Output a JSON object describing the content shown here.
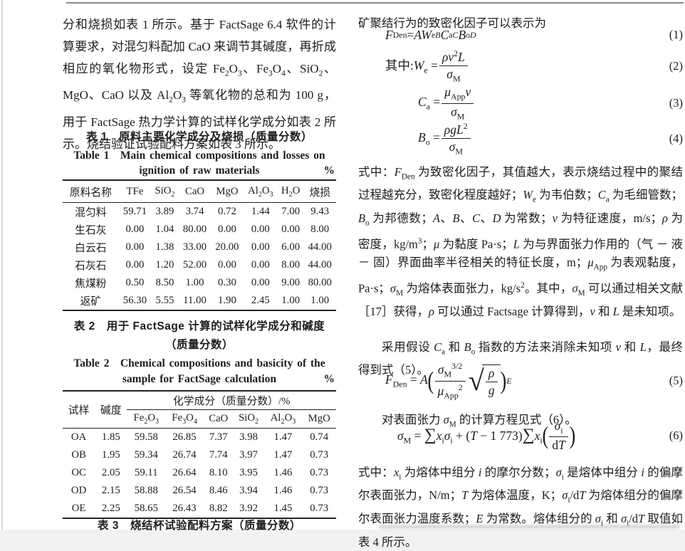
{
  "left": {
    "intro": "分和烧损如表 1 所示。基于 FactSage 6.4 软件的计算要求，对混匀料配加 CaO 来调节其碱度，再折成相应的氧化物形式，设定 Fe<sub>2</sub>O<sub>3</sub>、Fe<sub>3</sub>O<sub>4</sub>、SiO<sub>2</sub>、MgO、CaO 以及 Al<sub>2</sub>O<sub>3</sub> 等氧化物的总和为 100 g，用于 FactSage 热力学计算的试样化学成分如表 2 所示。烧结验证试验配料方案如表 3 所示。",
    "table1": {
      "caption_zh": "表 1　原料主要化学成分及烧损（质量分数）",
      "caption_en_line1": "Table 1　Main chemical compositions and losses on",
      "caption_en_line2": "ignition of raw materials",
      "unit": "%",
      "headers": [
        "原料名称",
        "TFe",
        "SiO<sub>2</sub>",
        "CaO",
        "MgO",
        "Al<sub>2</sub>O<sub>3</sub>",
        "H<sub>2</sub>O",
        "烧损"
      ],
      "rows": [
        [
          "混匀料",
          "59.71",
          "3.89",
          "3.74",
          "0.72",
          "1.44",
          "7.00",
          "9.43"
        ],
        [
          "生石灰",
          "0.00",
          "1.04",
          "80.00",
          "0.00",
          "0.00",
          "0.00",
          "8.00"
        ],
        [
          "白云石",
          "0.00",
          "1.38",
          "33.00",
          "20.00",
          "0.00",
          "6.00",
          "44.00"
        ],
        [
          "石灰石",
          "0.00",
          "1.20",
          "52.00",
          "0.00",
          "0.00",
          "8.00",
          "44.00"
        ],
        [
          "焦煤粉",
          "0.50",
          "8.50",
          "1.00",
          "0.30",
          "0.00",
          "9.00",
          "80.00"
        ],
        [
          "返矿",
          "56.30",
          "5.55",
          "11.00",
          "1.90",
          "2.45",
          "1.00",
          "1.00"
        ]
      ]
    },
    "table2": {
      "caption_zh_line1": "表 2　用于 FactSage 计算的试样化学成分和碱度",
      "caption_zh_line2": "（质量分数）",
      "caption_en_line1": "Table 2　Chemical compositions and basicity of the",
      "caption_en_line2": "sample for FactSage calculation",
      "unit": "%",
      "header_sample": "试样",
      "header_basicity": "碱度",
      "header_group": "化学成分（质量分数）/%",
      "subheaders": [
        "Fe<sub>2</sub>O<sub>3</sub>",
        "Fe<sub>3</sub>O<sub>4</sub>",
        "CaO",
        "SiO<sub>2</sub>",
        "Al<sub>2</sub>O<sub>3</sub>",
        "MgO"
      ],
      "rows": [
        [
          "OA",
          "1.85",
          "59.58",
          "26.85",
          "7.37",
          "3.98",
          "1.47",
          "0.74"
        ],
        [
          "OB",
          "1.95",
          "59.34",
          "26.74",
          "7.74",
          "3.97",
          "1.47",
          "0.73"
        ],
        [
          "OC",
          "2.05",
          "59.11",
          "26.64",
          "8.10",
          "3.95",
          "1.46",
          "0.73"
        ],
        [
          "OD",
          "2.15",
          "58.88",
          "26.54",
          "8.46",
          "3.94",
          "1.46",
          "0.73"
        ],
        [
          "OE",
          "2.25",
          "58.65",
          "26.43",
          "8.82",
          "3.92",
          "1.45",
          "0.73"
        ]
      ]
    },
    "table3_caption": "表 3　烧结杯试验配料方案（质量分数）"
  },
  "right": {
    "lead": "矿聚结行为的致密化因子可以表示为",
    "eq1": {
      "body": "<i>F</i><sub>Den</sub> = <i>AW</i><sub>e</sub><sup><i>B</i></sup><i>C</i><sub>a</sub><sup><i>C</i></sup><i>B</i><sub>o</sub><sup><i>D</i></sup>",
      "no": "(1)"
    },
    "eq2": {
      "prefix": "其中:<i>W</i><sub>e</sub> = ",
      "num": "<i>ρv</i><sup>2</sup><i>L</i>",
      "den": "<i>σ</i><sub>M</sub>",
      "no": "(2)"
    },
    "eq3": {
      "prefix": "<i>C</i><sub>a</sub> = ",
      "num": "<i>μ</i><sub>App</sub><i>v</i>",
      "den": "<i>σ</i><sub>M</sub>",
      "no": "(3)"
    },
    "eq4": {
      "prefix": "<i>B</i><sub>o</sub> = ",
      "num": "<i>ρgL</i><sup>2</sup>",
      "den": "<i>σ</i><sub>M</sub>",
      "no": "(4)"
    },
    "para1": "式中：<i>F</i><sub>Den</sub> 为致密化因子，其值越大，表示烧结过程中的聚结过程越充分，致密化程度越好；<i>W</i><sub>e</sub> 为韦伯数；<i>C</i><sub>a</sub> 为毛细管数；<i>B</i><sub>o</sub> 为邦德数；<i>A</i>、<i>B</i>、<i>C</i>、<i>D</i> 为常数；<i>v</i> 为特征速度，m/s；<i>ρ</i> 为密度，kg/m<sup>3</sup>；<i>μ</i> 为黏度 Pa·s；<i>L</i> 为与界面张力作用的（气 － 液 － 固）界面曲率半径相关的特征长度，m；<i>μ</i><sub>App</sub> 为表观黏度，Pa·s；<i>σ</i><sub>M</sub> 为熔体表面张力，kg/s<sup>2</sup>。其中，<i>σ</i><sub>M</sub> 可以通过相关文献［17］获得，<i>ρ</i> 可以通过 Factsage 计算得到，<i>v</i> 和 <i>L</i> 是未知项。",
    "para2": "采用假设 <i>C</i><sub>a</sub> 和 <i>B</i><sub>o</sub> 指数的方法来消除未知项 <i>v</i> 和 <i>L</i>，最终得到式（5）。",
    "eq5": {
      "prefix": "<i>F</i><sub>Den</sub> = <i>A</i>",
      "num": "<i>σ</i><sub>M</sub><sup>3/2</sup>",
      "den": "<i>μ</i><sub>App</sub><sup>2</sup>",
      "sqrt_num": "<i>ρ</i>",
      "sqrt_den": "<i>g</i>",
      "power": "<i>E</i>",
      "no": "(5)"
    },
    "para3": "对表面张力 <i>σ</i><sub>M</sub> 的计算方程见式（6）。",
    "eq6": {
      "part1": "<i>σ</i><sub>M</sub> = <span class=\"sum\">∑</span><i>x</i><sub>i</sub><i>σ</i><sub>i</sub> + (<i>T</i> − 1 773)<span class=\"sum\">∑</span><i>x</i><sub>i</sub>",
      "num": "<i>σ</i><sub>i</sub>",
      "den": "d<i>T</i>",
      "no": "(6)"
    },
    "para4": "式中：<i>x</i><sub>i</sub> 为熔体中组分 <i>i</i> 的摩尔分数；<i>σ</i><sub>i</sub> 是熔体中组分 <i>i</i> 的偏摩尔表面张力，N/m；<i>T</i> 为熔体温度，K；<i>σ</i><sub>i</sub>/d<i>T</i> 为熔体组分的偏摩尔表面张力温度系数；<i>E</i> 为常数。熔体组分的 <i>σ</i><sub>i</sub> 和 <i>σ</i><sub>i</sub>/d<i>T</i> 取值如表 4 所示。"
  }
}
